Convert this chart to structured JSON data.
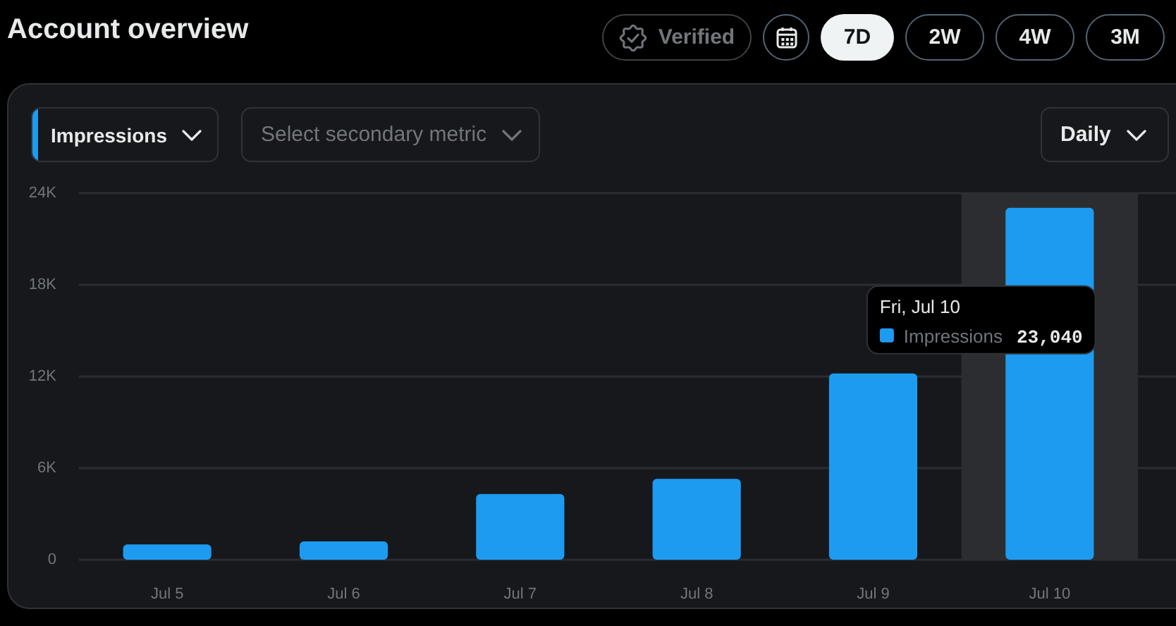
{
  "chart_data": {
    "type": "bar",
    "title": "Account overview",
    "categories": [
      "Jul 5",
      "Jul 6",
      "Jul 7",
      "Jul 8",
      "Jul 9",
      "Jul 10"
    ],
    "series": [
      {
        "name": "Impressions",
        "color": "#1d9bf0",
        "values": [
          1000,
          1200,
          4300,
          5300,
          12200,
          23040
        ],
        "value_labels": [
          null,
          null,
          null,
          null,
          null,
          "23,040"
        ]
      }
    ],
    "ylim": [
      0,
      24000
    ],
    "yticks": [
      0,
      {
        "value": 6000,
        "label": "6K"
      },
      {
        "value": 12000,
        "label": "12K"
      },
      {
        "value": 18000,
        "label": "18K"
      },
      {
        "value": 24000,
        "label": "24K"
      }
    ],
    "grid": "y",
    "bands": [
      {
        "axis": "x",
        "from": "Jul 10",
        "to": "Jul 10",
        "color": "#2c2d31"
      }
    ],
    "annotations": [
      "Fri, Jul 10",
      "Verified",
      "7D",
      "2W",
      "4W",
      "3M",
      "Select secondary metric",
      "Daily"
    ]
  }
}
